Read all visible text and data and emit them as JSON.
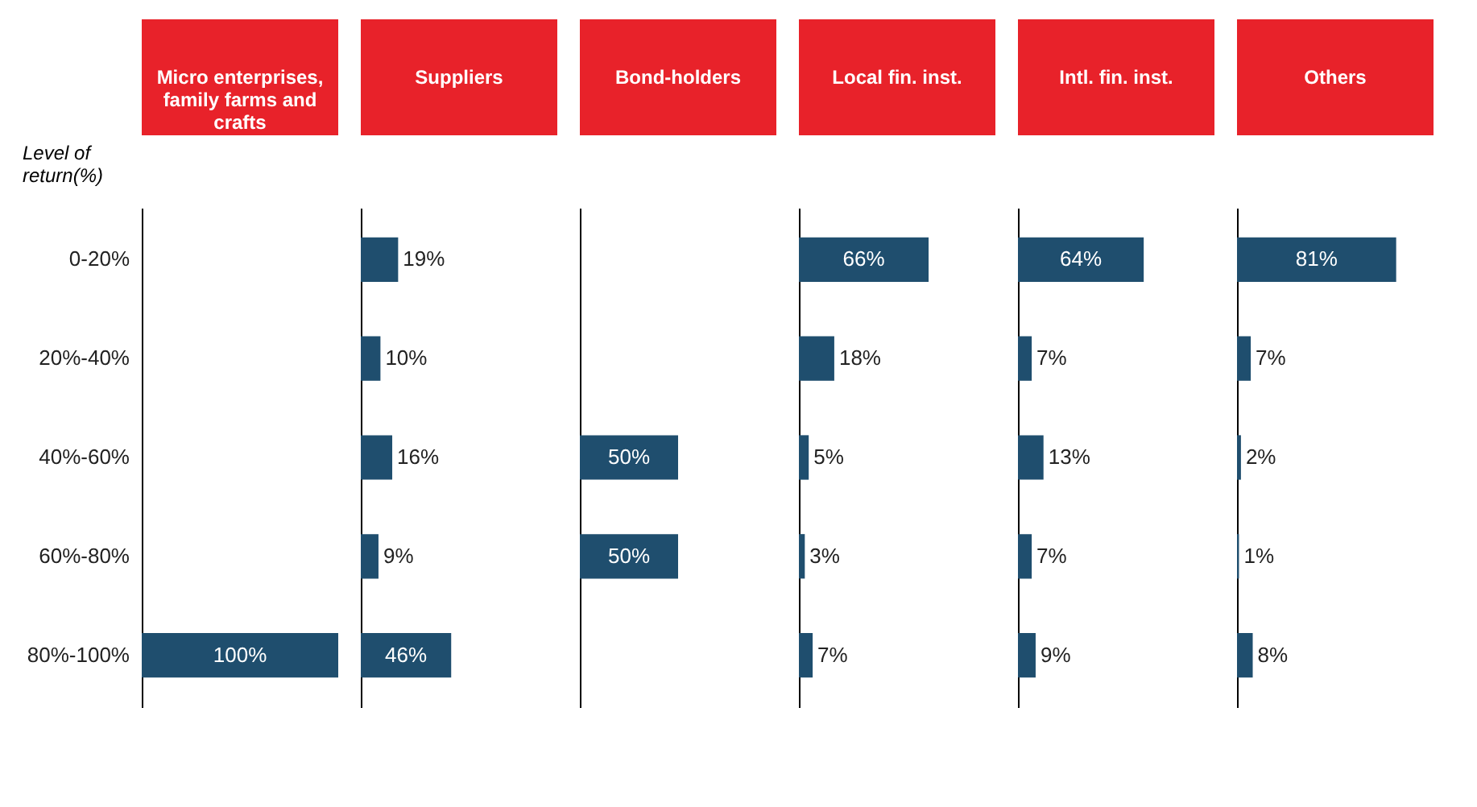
{
  "chart_data": [
    {
      "type": "bar",
      "orientation": "horizontal",
      "title": "Micro enterprises, family farms and crafts",
      "ylabel": "Level of return(%)",
      "categories": [
        "0-20%",
        "20%-40%",
        "40%-60%",
        "60%-80%",
        "80%-100%"
      ],
      "values": [
        null,
        null,
        null,
        null,
        100
      ],
      "value_labels": [
        null,
        null,
        null,
        null,
        "100%"
      ],
      "color": "#1f4e6e",
      "tick_labels": "y"
    },
    {
      "type": "bar",
      "orientation": "horizontal",
      "title": "Suppliers",
      "categories": [
        null,
        null,
        null,
        null,
        null
      ],
      "values": [
        19,
        10,
        16,
        9,
        46
      ],
      "value_labels": [
        "19%",
        "10%",
        "16%",
        "9%",
        "46%"
      ],
      "color": "#1f4e6e",
      "tick_labels": false
    },
    {
      "type": "bar",
      "orientation": "horizontal",
      "title": "Bond-holders",
      "categories": [
        null,
        null,
        null,
        null,
        null
      ],
      "values": [
        null,
        null,
        50,
        50,
        null
      ],
      "value_labels": [
        null,
        null,
        "50%",
        "50%",
        null
      ],
      "color": "#1f4e6e",
      "tick_labels": false
    },
    {
      "type": "bar",
      "orientation": "horizontal",
      "title": "Local fin. inst.",
      "categories": [
        null,
        null,
        null,
        null,
        null
      ],
      "values": [
        66,
        18,
        5,
        3,
        7
      ],
      "value_labels": [
        "66%",
        "18%",
        "5%",
        "3%",
        "7%"
      ],
      "color": "#1f4e6e",
      "tick_labels": false
    },
    {
      "type": "bar",
      "orientation": "horizontal",
      "title": "Intl. fin. inst.",
      "categories": [
        null,
        null,
        null,
        null,
        null
      ],
      "values": [
        64,
        7,
        13,
        7,
        9
      ],
      "value_labels": [
        "64%",
        "7%",
        "13%",
        "7%",
        "9%"
      ],
      "color": "#1f4e6e",
      "tick_labels": false
    },
    {
      "type": "bar",
      "orientation": "horizontal",
      "title": "Others",
      "categories": [
        null,
        null,
        null,
        null,
        null
      ],
      "values": [
        81,
        7,
        2,
        1,
        8
      ],
      "value_labels": [
        "81%",
        "7%",
        "2%",
        "1%",
        "8%"
      ],
      "color": "#1f4e6e",
      "tick_labels": false
    }
  ]
}
